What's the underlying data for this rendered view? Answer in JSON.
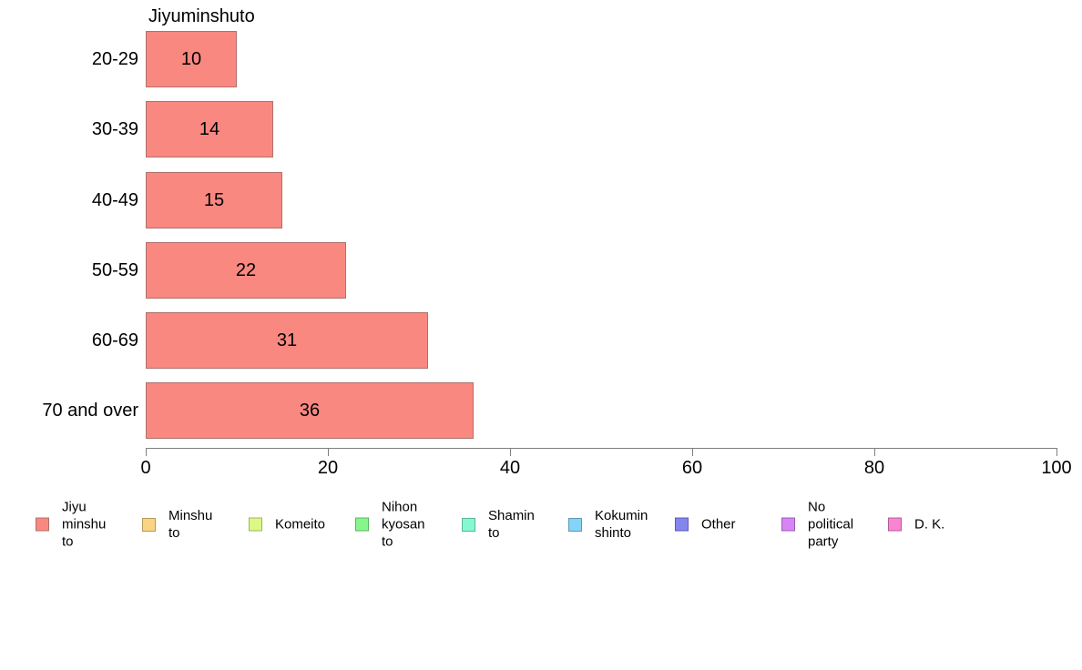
{
  "title": "Jiyuminshuto",
  "chart_data": {
    "type": "bar",
    "orientation": "horizontal",
    "title": "Jiyuminshuto",
    "categories": [
      "20-29",
      "30-39",
      "40-49",
      "50-59",
      "60-69",
      "70 and over"
    ],
    "values": [
      10,
      14,
      15,
      22,
      31,
      36
    ],
    "series_name": "Jiyu minshu to",
    "value_labels_shown": true,
    "xlabel": "",
    "ylabel": "",
    "xlim": [
      0,
      100
    ],
    "xticks": [
      0,
      20,
      40,
      60,
      80,
      100
    ],
    "grid": false,
    "legend_position": "bottom",
    "bar_fill_color": "#F98880",
    "bar_border_color": "#B0716B",
    "axis_color": "#808080",
    "text_color": "#000000"
  },
  "legend": {
    "items": [
      {
        "label": "Jiyu minshu to",
        "color": "#F98880",
        "border": "#B0716B"
      },
      {
        "label": "Minshu to",
        "color": "#FBD385",
        "border": "#B49A5C"
      },
      {
        "label": "Komeito",
        "color": "#DCF985",
        "border": "#9DB45C"
      },
      {
        "label": "Nihon kyosan to",
        "color": "#86F68B",
        "border": "#5CB463"
      },
      {
        "label": "Shamin to",
        "color": "#85F8D2",
        "border": "#5CB49A"
      },
      {
        "label": "Kokumin shinto",
        "color": "#85D3F8",
        "border": "#5C9AB4"
      },
      {
        "label": "Other",
        "color": "#8585EE",
        "border": "#5B5BB4"
      },
      {
        "label": "No political party",
        "color": "#D785F5",
        "border": "#9A5CB4"
      },
      {
        "label": "D. K.",
        "color": "#F985D2",
        "border": "#B45C9A"
      }
    ]
  }
}
